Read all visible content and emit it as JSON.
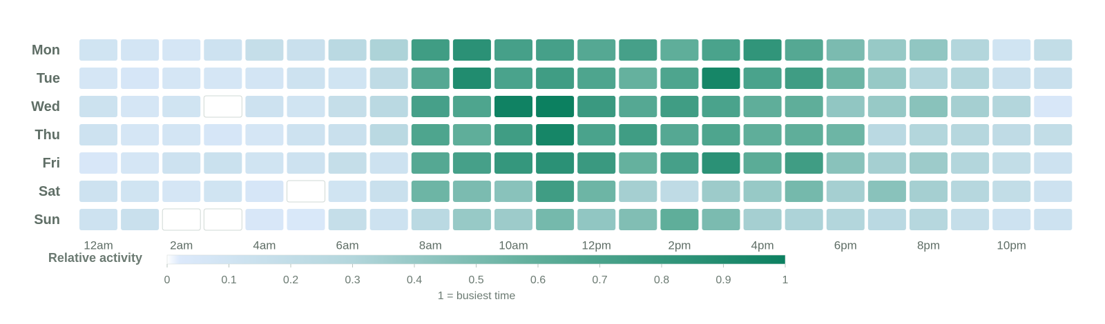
{
  "chart_data": {
    "type": "heatmap",
    "x_categories": [
      "12am",
      null,
      "2am",
      null,
      "4am",
      null,
      "6am",
      null,
      "8am",
      null,
      "10am",
      null,
      "12pm",
      null,
      "2pm",
      null,
      "4pm",
      null,
      "6pm",
      null,
      "8pm",
      null,
      "10pm",
      null
    ],
    "y_categories": [
      "Mon",
      "Tue",
      "Wed",
      "Thu",
      "Fri",
      "Sat",
      "Sun"
    ],
    "values": [
      [
        0.1,
        0.08,
        0.07,
        0.12,
        0.18,
        0.15,
        0.25,
        0.32,
        0.75,
        0.85,
        0.72,
        0.72,
        0.65,
        0.72,
        0.6,
        0.7,
        0.82,
        0.65,
        0.5,
        0.4,
        0.42,
        0.3,
        0.1,
        0.2
      ],
      [
        0.07,
        0.06,
        0.07,
        0.07,
        0.08,
        0.12,
        0.1,
        0.22,
        0.65,
        0.9,
        0.7,
        0.75,
        0.68,
        0.58,
        0.68,
        0.95,
        0.7,
        0.75,
        0.55,
        0.4,
        0.3,
        0.3,
        0.15,
        0.15
      ],
      [
        0.13,
        0.07,
        0.1,
        0,
        0.12,
        0.1,
        0.18,
        0.25,
        0.72,
        0.68,
        0.98,
        1,
        0.78,
        0.65,
        0.75,
        0.7,
        0.6,
        0.6,
        0.42,
        0.4,
        0.45,
        0.35,
        0.3,
        0.05
      ],
      [
        0.12,
        0.07,
        0.08,
        0.06,
        0.07,
        0.12,
        0.15,
        0.25,
        0.68,
        0.6,
        0.75,
        0.95,
        0.7,
        0.75,
        0.65,
        0.68,
        0.6,
        0.6,
        0.55,
        0.25,
        0.3,
        0.28,
        0.22,
        0.2
      ],
      [
        0.05,
        0.07,
        0.12,
        0.14,
        0.1,
        0.12,
        0.18,
        0.12,
        0.65,
        0.72,
        0.8,
        0.85,
        0.78,
        0.58,
        0.72,
        0.85,
        0.62,
        0.75,
        0.45,
        0.35,
        0.38,
        0.3,
        0.2,
        0.12
      ],
      [
        0.12,
        0.1,
        0.07,
        0.1,
        0.06,
        0,
        0.1,
        0.15,
        0.55,
        0.5,
        0.45,
        0.75,
        0.55,
        0.35,
        0.22,
        0.38,
        0.4,
        0.52,
        0.35,
        0.45,
        0.35,
        0.28,
        0.2,
        0.12
      ],
      [
        0.12,
        0.15,
        0,
        0,
        0.05,
        0.04,
        0.18,
        0.12,
        0.25,
        0.4,
        0.38,
        0.52,
        0.42,
        0.48,
        0.6,
        0.5,
        0.35,
        0.32,
        0.3,
        0.25,
        0.28,
        0.18,
        0.12,
        0.12
      ]
    ],
    "colorbar": {
      "label": "Relative activity",
      "caption": "1 = busiest time",
      "lim": [
        0,
        1
      ],
      "ticks": [
        0,
        0.1,
        0.2,
        0.3,
        0.4,
        0.5,
        0.6,
        0.7,
        0.8,
        0.9,
        1
      ],
      "color_stops": [
        [
          0,
          "#ffffff"
        ],
        [
          0.02,
          "#dce9fb"
        ],
        [
          0.3,
          "#b3d6dc"
        ],
        [
          0.6,
          "#5fae9a"
        ],
        [
          1,
          "#0c8060"
        ]
      ]
    }
  }
}
